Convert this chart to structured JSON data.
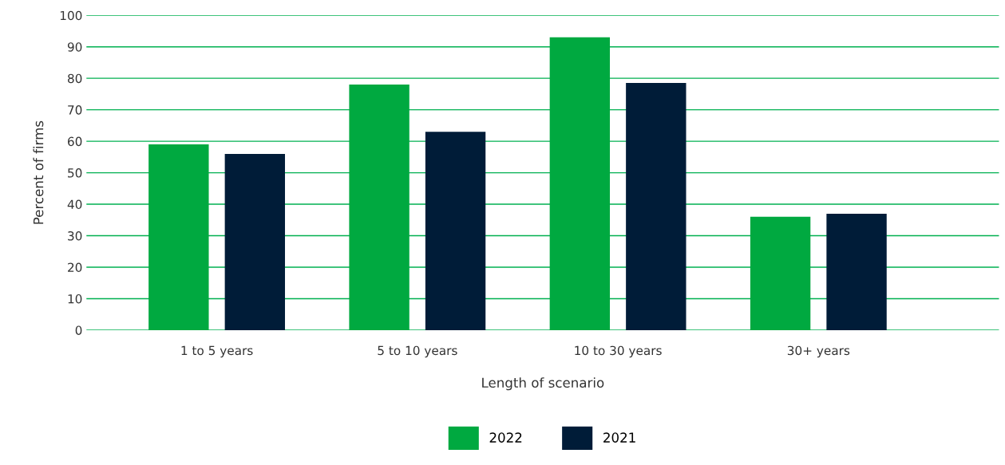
{
  "chart_data": {
    "type": "bar",
    "xlabel": "Length of scenario",
    "ylabel": "Percent of firms",
    "categories": [
      "1 to 5 years",
      "5 to 10 years",
      "10 to 30 years",
      "30+ years"
    ],
    "series": [
      {
        "name": "2022",
        "color": "#00a940",
        "values": [
          59,
          78,
          93,
          36
        ]
      },
      {
        "name": "2021",
        "color": "#001c38",
        "values": [
          56,
          63,
          78.5,
          37
        ]
      }
    ],
    "ylim": [
      0,
      100
    ],
    "yticks": [
      0,
      10,
      20,
      30,
      40,
      50,
      60,
      70,
      80,
      90,
      100
    ],
    "grid": "y",
    "legend": "bottom"
  }
}
